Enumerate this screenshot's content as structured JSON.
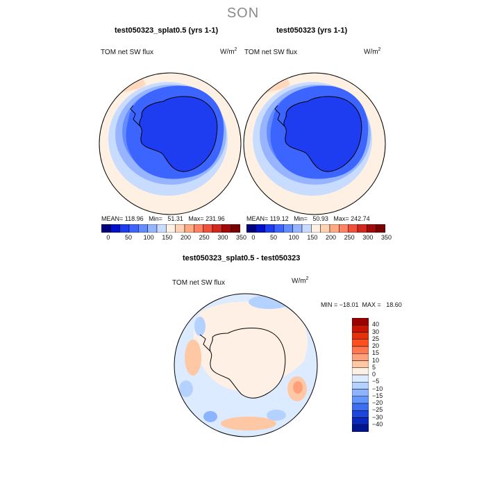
{
  "season": "SON",
  "panels": [
    {
      "title": "test050323_splat0.5 (yrs 1-1)",
      "variable": "TOM net SW flux",
      "units_base": "W/m",
      "units_exp": "2",
      "stats": "MEAN= 118.96   Min=   51.31   Max= 231.96"
    },
    {
      "title": "test050323 (yrs 1-1)",
      "variable": "TOM net SW flux",
      "units_base": "W/m",
      "units_exp": "2",
      "stats": "MEAN= 119.12   Min=   50.93   Max= 242.74"
    }
  ],
  "colorbar_top": {
    "colors": [
      "#00007f",
      "#0010c8",
      "#1e3cf0",
      "#3c64ff",
      "#648cff",
      "#96b4ff",
      "#c8dcff",
      "#fff0e4",
      "#ffd2b4",
      "#ffaa82",
      "#ff8264",
      "#f0503c",
      "#d2281e",
      "#a00a0a",
      "#780000"
    ],
    "tick_labels": [
      "0",
      "50",
      "100",
      "150",
      "200",
      "250",
      "300",
      "350"
    ]
  },
  "diff_panel": {
    "title": "test050323_splat0.5 - test050323",
    "variable": "TOM net SW flux",
    "units_base": "W/m",
    "units_exp": "2",
    "minmax": "MIN = −18.01  MAX =   18.60"
  },
  "colorbar_diff": {
    "colors": [
      "#9a0000",
      "#c81400",
      "#e6320a",
      "#ff501e",
      "#ff7850",
      "#ffa07d",
      "#ffc8a5",
      "#fff0e6",
      "#dcebff",
      "#b4d2ff",
      "#8cb4ff",
      "#6496ff",
      "#3c6ef0",
      "#1e46dc",
      "#0a28be",
      "#00148c"
    ],
    "tick_labels": [
      "40",
      "30",
      "25",
      "20",
      "15",
      "10",
      "5",
      "0",
      "−5",
      "−10",
      "−15",
      "−20",
      "−25",
      "−30",
      "−40"
    ]
  }
}
